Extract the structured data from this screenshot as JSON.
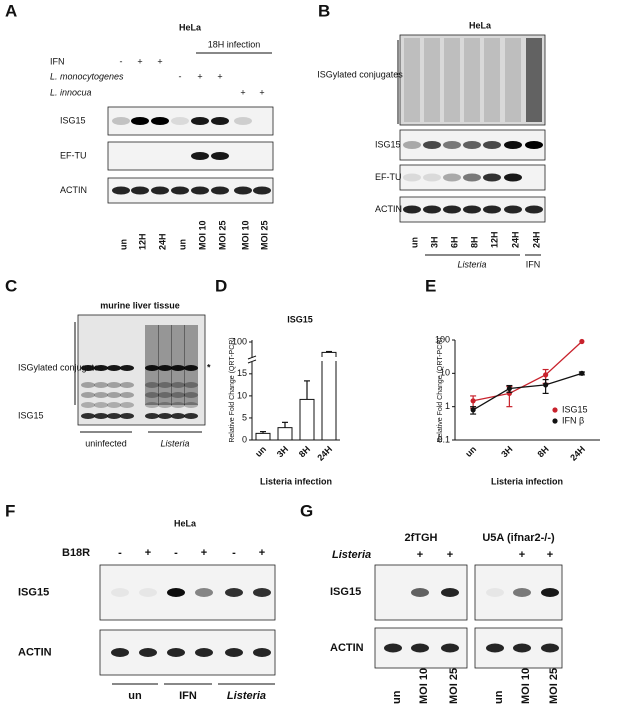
{
  "panels": {
    "a": {
      "letter": "A",
      "title": "HeLa",
      "infection_header": "18H infection",
      "rows": [
        {
          "label": "IFN",
          "signs": [
            "-",
            "+",
            "+"
          ]
        },
        {
          "label": "L. monocytogenes",
          "signs": [
            "-",
            "+",
            "+"
          ]
        },
        {
          "label": "L. innocua",
          "signs": [
            "+",
            "+"
          ]
        }
      ],
      "blots": [
        "ISG15",
        "EF-TU",
        "ACTIN"
      ],
      "lanes": [
        "un",
        "12H",
        "24H",
        "un",
        "MOI 10",
        "MOI 25",
        "MOI 10",
        "MOI 25"
      ]
    },
    "b": {
      "letter": "B",
      "title": "HeLa",
      "conjugates_label": "ISGylated conjugates",
      "blots": [
        "ISG15",
        "EF-TU",
        "ACTIN"
      ],
      "lanes": [
        "un",
        "3H",
        "6H",
        "8H",
        "12H",
        "24H",
        "24H"
      ],
      "groups": [
        "Listeria",
        "IFN"
      ]
    },
    "c": {
      "letter": "C",
      "title": "murine liver tissue",
      "conjugates_label": "ISGylated conjugates",
      "blot": "ISG15",
      "asterisk": "*",
      "groups": [
        "uninfected",
        "Listeria"
      ]
    },
    "d": {
      "letter": "D"
    },
    "e": {
      "letter": "E"
    },
    "f": {
      "letter": "F",
      "title": "HeLa",
      "treatment": "B18R",
      "signs": [
        "-",
        "+",
        "-",
        "+",
        "-",
        "+"
      ],
      "blots": [
        "ISG15",
        "ACTIN"
      ],
      "groups": [
        "un",
        "IFN",
        "Listeria"
      ]
    },
    "g": {
      "letter": "G",
      "cell_lines": [
        "2fTGH",
        "U5A (ifnar2-/-)"
      ],
      "treatment": "Listeria",
      "signs": [
        [
          "+",
          "+"
        ],
        [
          "+",
          "+"
        ]
      ],
      "blots": [
        "ISG15",
        "ACTIN"
      ],
      "lanes": [
        [
          "un",
          "MOI 10",
          "MOI 25"
        ],
        [
          "un",
          "MOI 10",
          "MOI 25"
        ]
      ]
    }
  },
  "chart_data": [
    {
      "type": "bar",
      "title": "ISG15",
      "y_label": "Relative Fold Change (QRT-PCR)",
      "x_label": "Listeria infection",
      "categories": [
        "un",
        "3H",
        "8H",
        "24H"
      ],
      "values": [
        1.5,
        2.8,
        9.2,
        88
      ],
      "errors": [
        0.4,
        1.2,
        4.2,
        1
      ],
      "ylim": [
        0,
        100
      ],
      "ybreak": [
        17,
        85
      ],
      "yticks": [
        0,
        5,
        10,
        15,
        100
      ],
      "color": "#ffffff"
    },
    {
      "type": "line",
      "y_label": "Relative Fold Change (QRT-PCR)",
      "x_label": "Listeria infection",
      "log_y": true,
      "categories": [
        "un",
        "3H",
        "8H",
        "24H"
      ],
      "ylim": [
        0.1,
        100
      ],
      "yticks": [
        0.1,
        1,
        10,
        100
      ],
      "legend": "lower right",
      "series": [
        {
          "name": "ISG15",
          "color": "#c8222c",
          "values": [
            1.5,
            2.5,
            9,
            90
          ],
          "errors": [
            0.6,
            1.5,
            4,
            0
          ]
        },
        {
          "name": "IFN β",
          "color": "#111111",
          "values": [
            0.8,
            3.5,
            4.5,
            10
          ],
          "errors": [
            0.2,
            0.8,
            2,
            1
          ]
        }
      ]
    }
  ]
}
